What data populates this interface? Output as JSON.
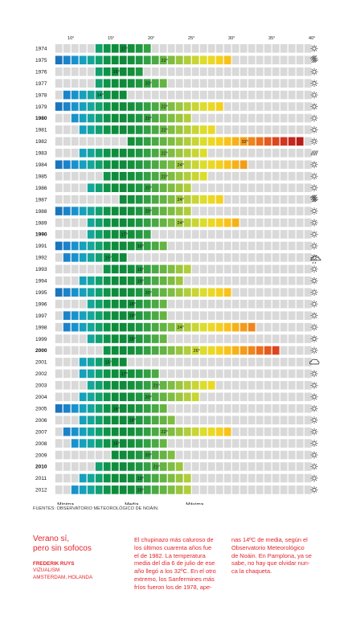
{
  "chart_data": {
    "type": "bar",
    "xlim": [
      8,
      40
    ],
    "x_ticks": [
      "10°",
      "15°",
      "20°",
      "25°",
      "30°",
      "35°",
      "40°"
    ],
    "x_tick_values": [
      10,
      15,
      20,
      25,
      30,
      35,
      40
    ],
    "legend": {
      "min": "Mínima",
      "mean": "Media",
      "max": "Máxima"
    },
    "rows": [
      {
        "year": "1974",
        "bold": false,
        "min": 13,
        "mean": 17,
        "max": 20,
        "icon": "sun-icon"
      },
      {
        "year": "1975",
        "bold": false,
        "min": 8,
        "mean": 22,
        "max": 30,
        "icon": "wind-icon"
      },
      {
        "year": "1976",
        "bold": false,
        "min": 13,
        "mean": 16,
        "max": 19,
        "icon": "sun-icon"
      },
      {
        "year": "1977",
        "bold": false,
        "min": 13,
        "mean": 20,
        "max": 22,
        "icon": "sun-icon"
      },
      {
        "year": "1978",
        "bold": false,
        "min": 9,
        "mean": 14,
        "max": 17,
        "icon": "sun-icon"
      },
      {
        "year": "1979",
        "bold": false,
        "min": 8,
        "mean": 22,
        "max": 29,
        "icon": "sun-icon"
      },
      {
        "year": "1980",
        "bold": true,
        "min": 10,
        "mean": 20,
        "max": 25,
        "icon": "sun-icon"
      },
      {
        "year": "1981",
        "bold": false,
        "min": 11,
        "mean": 22,
        "max": 28,
        "icon": "sun-icon"
      },
      {
        "year": "1982",
        "bold": false,
        "min": 17,
        "mean": 32,
        "max": 39,
        "icon": "sun-icon"
      },
      {
        "year": "1983",
        "bold": false,
        "min": 11,
        "mean": 22,
        "max": 27,
        "icon": "rain-icon"
      },
      {
        "year": "1984",
        "bold": false,
        "min": 8,
        "mean": 24,
        "max": 32,
        "icon": "sun-icon"
      },
      {
        "year": "1985",
        "bold": false,
        "min": 14,
        "mean": 22,
        "max": 27,
        "icon": "sun-icon"
      },
      {
        "year": "1986",
        "bold": false,
        "min": 12,
        "mean": 20,
        "max": 25,
        "icon": "sun-icon"
      },
      {
        "year": "1987",
        "bold": false,
        "min": 16,
        "mean": 24,
        "max": 29,
        "icon": "wind-icon"
      },
      {
        "year": "1988",
        "bold": false,
        "min": 8,
        "mean": 20,
        "max": 25,
        "icon": "sun-icon"
      },
      {
        "year": "1989",
        "bold": false,
        "min": 12,
        "mean": 24,
        "max": 31,
        "icon": "sun-icon"
      },
      {
        "year": "1990",
        "bold": true,
        "min": 12,
        "mean": 17,
        "max": 20,
        "icon": "sun-icon"
      },
      {
        "year": "1991",
        "bold": false,
        "min": 8,
        "mean": 19,
        "max": 22,
        "icon": "sun-icon"
      },
      {
        "year": "1992",
        "bold": false,
        "min": 9,
        "mean": 15,
        "max": 17,
        "icon": "cloud-sun-rain-icon"
      },
      {
        "year": "1993",
        "bold": false,
        "min": 14,
        "mean": 19,
        "max": 25,
        "icon": "sun-icon"
      },
      {
        "year": "1994",
        "bold": false,
        "min": 11,
        "mean": 19,
        "max": 24,
        "icon": "sun-icon"
      },
      {
        "year": "1995",
        "bold": false,
        "min": 8,
        "mean": 20,
        "max": 30,
        "icon": "sun-icon"
      },
      {
        "year": "1996",
        "bold": false,
        "min": 12,
        "mean": 18,
        "max": 22,
        "icon": "sun-icon"
      },
      {
        "year": "1997",
        "bold": false,
        "min": 9,
        "mean": 18,
        "max": 22,
        "icon": "sun-icon"
      },
      {
        "year": "1998",
        "bold": false,
        "min": 9,
        "mean": 24,
        "max": 33,
        "icon": "sun-icon"
      },
      {
        "year": "1999",
        "bold": false,
        "min": 12,
        "mean": 18,
        "max": 22,
        "icon": "sun-icon"
      },
      {
        "year": "2000",
        "bold": true,
        "min": 14,
        "mean": 26,
        "max": 36,
        "icon": "sun-icon"
      },
      {
        "year": "2001",
        "bold": false,
        "min": 11,
        "mean": 15,
        "max": 17,
        "icon": "cloud-icon"
      },
      {
        "year": "2002",
        "bold": false,
        "min": 11,
        "mean": 17,
        "max": 21,
        "icon": "sun-icon"
      },
      {
        "year": "2003",
        "bold": false,
        "min": 12,
        "mean": 21,
        "max": 28,
        "icon": "sun-icon"
      },
      {
        "year": "2004",
        "bold": false,
        "min": 11,
        "mean": 20,
        "max": 26,
        "icon": "sun-icon"
      },
      {
        "year": "2005",
        "bold": false,
        "min": 8,
        "mean": 16,
        "max": 22,
        "icon": "sun-icon"
      },
      {
        "year": "2006",
        "bold": false,
        "min": 11,
        "mean": 18,
        "max": 23,
        "icon": "sun-icon"
      },
      {
        "year": "2007",
        "bold": false,
        "min": 9,
        "mean": 22,
        "max": 30,
        "icon": "sun-icon"
      },
      {
        "year": "2008",
        "bold": false,
        "min": 10,
        "mean": 16,
        "max": 22,
        "icon": "sun-icon"
      },
      {
        "year": "2009",
        "bold": false,
        "min": 15,
        "mean": 20,
        "max": 23,
        "icon": "sun-icon"
      },
      {
        "year": "2010",
        "bold": true,
        "min": 13,
        "mean": 21,
        "max": 24,
        "icon": "sun-icon"
      },
      {
        "year": "2011",
        "bold": false,
        "min": 11,
        "mean": 19,
        "max": 25,
        "icon": "sun-icon"
      },
      {
        "year": "2012",
        "bold": false,
        "min": 10,
        "mean": 19,
        "max": 25,
        "icon": "sun-icon"
      }
    ],
    "colors": {
      "empty": "#d9d9d9",
      "scale": [
        "#1b75bc",
        "#1c83c9",
        "#1992cc",
        "#16a0bd",
        "#14a69a",
        "#11a06e",
        "#0e9448",
        "#0d8d3c",
        "#0e8a3a",
        "#138f3c",
        "#1f9741",
        "#33a043",
        "#4aa943",
        "#64b343",
        "#7fbc42",
        "#99c53f",
        "#b2cd3b",
        "#c8d535",
        "#dcdc2d",
        "#ead826",
        "#f5cf1f",
        "#f8c21c",
        "#f6b11a",
        "#f39c1b",
        "#ef861c",
        "#ea6f1d",
        "#e45a1e",
        "#db461f",
        "#d1351f",
        "#c4271d",
        "#b71c1a",
        "#a8151a",
        "#971114"
      ]
    }
  },
  "source": "FUENTES: OBSERVATORIO METEOROLÓGICO DE NOÁIN.",
  "title": [
    "Verano sí,",
    "pero sin sofocos"
  ],
  "author": {
    "name": "FREDERIK RUYS",
    "org": "VIZUALISM",
    "place": "AMSTERDAM, HOLANDA"
  },
  "text_col1": [
    "El chupinazo más caluroso de",
    "los últimos cuarenta años fue",
    "el de 1982. La temperatura",
    "media del día 6 de julio de ese",
    "año llegó a los 32ºC. En el otro",
    "extremo, los Sanfermines más",
    "fríos fueron los de 1978, ape-"
  ],
  "text_col2": [
    "nas 14ºC de media, según el",
    "Observatorio Meteorológico",
    "de Noáin. En Pamplona, ya se",
    "sabe, no hay que olvidar nun-",
    "ca la chaqueta."
  ]
}
